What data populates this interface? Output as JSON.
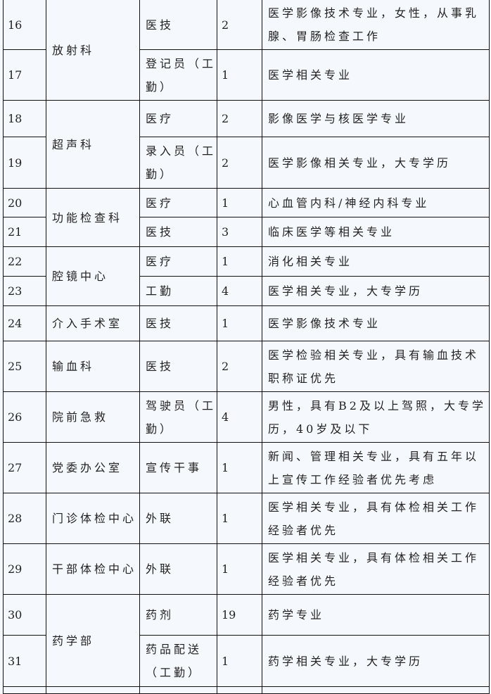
{
  "rows": [
    {
      "no": "16",
      "dept": "放射科",
      "span": 2,
      "post": "医技",
      "count": "2",
      "req": "医学影像技术专业，女性，从事乳腺、胃肠检查工作",
      "h": 71
    },
    {
      "no": "17",
      "post": "登记员（工勤）",
      "count": "1",
      "req": "医学相关专业",
      "h": 72
    },
    {
      "no": "18",
      "dept": "超声科",
      "span": 2,
      "post": "医疗",
      "count": "2",
      "req": "影像医学与核医学专业",
      "h": 52
    },
    {
      "no": "19",
      "post": "录入员（工勤）",
      "count": "2",
      "req": "医学影像相关专业，大专学历",
      "h": 73
    },
    {
      "no": "20",
      "dept": "功能检查科",
      "span": 2,
      "post": "医疗",
      "count": "1",
      "req": "心血管内科/神经内科专业",
      "h": 41
    },
    {
      "no": "21",
      "post": "医技",
      "count": "3",
      "req": "临床医学等相关专业",
      "h": 42
    },
    {
      "no": "22",
      "dept": "腔镜中心",
      "span": 2,
      "post": "医疗",
      "count": "1",
      "req": "消化相关专业",
      "h": 42
    },
    {
      "no": "23",
      "post": "工勤",
      "count": "4",
      "req": "医学相关专业，大专学历",
      "h": 42
    },
    {
      "no": "24",
      "dept": "介入手术室",
      "span": 1,
      "post": "医技",
      "count": "1",
      "req": "医学影像技术专业",
      "h": 50
    },
    {
      "no": "25",
      "dept": "输血科",
      "span": 1,
      "post": "医技",
      "count": "2",
      "req": "医学检验相关专业，具有输血技术职称证优先",
      "h": 72
    },
    {
      "no": "26",
      "dept": "院前急救",
      "span": 1,
      "post": "驾驶员（工勤）",
      "count": "4",
      "req": "男性，具有B2及以上驾照，大专学历，40岁及以下",
      "h": 72
    },
    {
      "no": "27",
      "dept": "党委办公室",
      "span": 1,
      "post": "宣传干事",
      "count": "1",
      "req": "新闻、管理相关专业，具有五年以上宣传工作经验者优先考虑",
      "h": 72
    },
    {
      "no": "28",
      "dept": "门诊体检中心",
      "span": 1,
      "post": "外联",
      "count": "1",
      "req": "医学相关专业，具有体检相关工作经验者优先",
      "h": 72
    },
    {
      "no": "29",
      "dept": "干部体检中心",
      "span": 1,
      "post": "外联",
      "count": "1",
      "req": "医学相关专业，具有体检相关工作经验者优先",
      "h": 72
    },
    {
      "no": "30",
      "dept": "药学部",
      "span": 2,
      "post": "药剂",
      "count": "19",
      "req": "药学专业",
      "h": 58
    },
    {
      "no": "31",
      "post": "药品配送（工勤）",
      "count": "1",
      "req": "药学相关专业，大专学历",
      "h": 73
    }
  ]
}
